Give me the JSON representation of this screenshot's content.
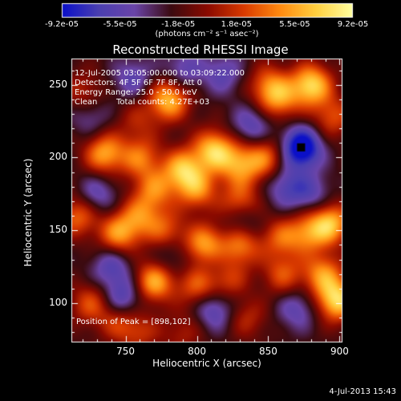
{
  "chart_data": {
    "type": "heatmap",
    "title": "Reconstructed RHESSI Image",
    "xlabel": "Heliocentric X (arcsec)",
    "ylabel": "Heliocentric Y (arcsec)",
    "xlim": [
      712,
      902
    ],
    "ylim": [
      73,
      268
    ],
    "xticks": [
      750,
      800,
      850,
      900
    ],
    "yticks": [
      100,
      150,
      200,
      250
    ],
    "colorbar": {
      "ticks": [
        "-9.2e-05",
        "-5.5e-05",
        "-1.8e-05",
        "1.8e-05",
        "5.5e-05",
        "9.2e-05"
      ],
      "unit_label": "(photons cm⁻² s⁻¹ asec⁻²)",
      "range": [
        -9.2e-05,
        9.2e-05
      ],
      "colors": [
        "#0b10c8",
        "#4a3fb0",
        "#6a44a8",
        "#3b0a10",
        "#8a0a00",
        "#d93a00",
        "#ff8a10",
        "#ffd040",
        "#ffffa0"
      ]
    },
    "annotations": {
      "time": "12-Jul-2005 03:05:00.000 to 03:09:22.000",
      "detectors": "Detectors: 4F 5F 6F 7F 8F, Att 0",
      "energy": "Energy Range: 25.0 - 50.0 keV",
      "clean": "Clean",
      "counts": "Total counts: 4.27E+03",
      "peak": "Position of Peak = [898,102]"
    },
    "peak_position": [
      898,
      102
    ],
    "hot_spots": [
      {
        "x": 880,
        "y": 250,
        "v": 1.0
      },
      {
        "x": 780,
        "y": 240,
        "v": 0.9
      },
      {
        "x": 850,
        "y": 250,
        "v": 0.55
      },
      {
        "x": 735,
        "y": 203,
        "v": 0.8
      },
      {
        "x": 760,
        "y": 200,
        "v": 0.6
      },
      {
        "x": 790,
        "y": 192,
        "v": 0.85
      },
      {
        "x": 812,
        "y": 205,
        "v": 0.95
      },
      {
        "x": 830,
        "y": 195,
        "v": 0.7
      },
      {
        "x": 848,
        "y": 200,
        "v": 0.6
      },
      {
        "x": 858,
        "y": 240,
        "v": 0.6
      },
      {
        "x": 895,
        "y": 228,
        "v": 0.5
      },
      {
        "x": 770,
        "y": 178,
        "v": 0.6
      },
      {
        "x": 800,
        "y": 178,
        "v": 0.65
      },
      {
        "x": 830,
        "y": 170,
        "v": 0.55
      },
      {
        "x": 760,
        "y": 160,
        "v": 0.55
      },
      {
        "x": 745,
        "y": 148,
        "v": 0.75
      },
      {
        "x": 778,
        "y": 150,
        "v": 0.5
      },
      {
        "x": 805,
        "y": 140,
        "v": 0.8
      },
      {
        "x": 830,
        "y": 140,
        "v": 0.7
      },
      {
        "x": 858,
        "y": 145,
        "v": 0.5
      },
      {
        "x": 877,
        "y": 148,
        "v": 0.6
      },
      {
        "x": 893,
        "y": 155,
        "v": 0.9
      },
      {
        "x": 770,
        "y": 115,
        "v": 0.85
      },
      {
        "x": 800,
        "y": 112,
        "v": 0.55
      },
      {
        "x": 820,
        "y": 118,
        "v": 0.6
      },
      {
        "x": 860,
        "y": 120,
        "v": 0.5
      },
      {
        "x": 888,
        "y": 120,
        "v": 0.7
      },
      {
        "x": 898,
        "y": 102,
        "v": 1.0
      },
      {
        "x": 725,
        "y": 100,
        "v": 0.5
      },
      {
        "x": 745,
        "y": 88,
        "v": 0.45
      },
      {
        "x": 760,
        "y": 80,
        "v": 0.35
      },
      {
        "x": 790,
        "y": 80,
        "v": 0.3
      },
      {
        "x": 835,
        "y": 90,
        "v": 0.35
      },
      {
        "x": 716,
        "y": 160,
        "v": 0.6
      },
      {
        "x": 720,
        "y": 245,
        "v": 0.35
      },
      {
        "x": 758,
        "y": 225,
        "v": 0.3
      }
    ],
    "cold_spots": [
      {
        "x": 873,
        "y": 207,
        "v": -1.0
      },
      {
        "x": 748,
        "y": 103,
        "v": -0.55
      },
      {
        "x": 812,
        "y": 96,
        "v": -0.5
      },
      {
        "x": 818,
        "y": 258,
        "v": -0.4
      },
      {
        "x": 838,
        "y": 222,
        "v": -0.45
      },
      {
        "x": 862,
        "y": 180,
        "v": -0.45
      },
      {
        "x": 790,
        "y": 260,
        "v": -0.4
      },
      {
        "x": 755,
        "y": 255,
        "v": -0.4
      },
      {
        "x": 730,
        "y": 175,
        "v": -0.4
      },
      {
        "x": 832,
        "y": 155,
        "v": -0.35
      },
      {
        "x": 815,
        "y": 125,
        "v": -0.35
      },
      {
        "x": 740,
        "y": 125,
        "v": -0.45
      },
      {
        "x": 870,
        "y": 96,
        "v": -0.4
      },
      {
        "x": 880,
        "y": 175,
        "v": -0.4
      },
      {
        "x": 782,
        "y": 132,
        "v": -0.3
      },
      {
        "x": 725,
        "y": 228,
        "v": -0.3
      }
    ]
  },
  "footer": {
    "timestamp": "4-Jul-2013 15:43"
  }
}
